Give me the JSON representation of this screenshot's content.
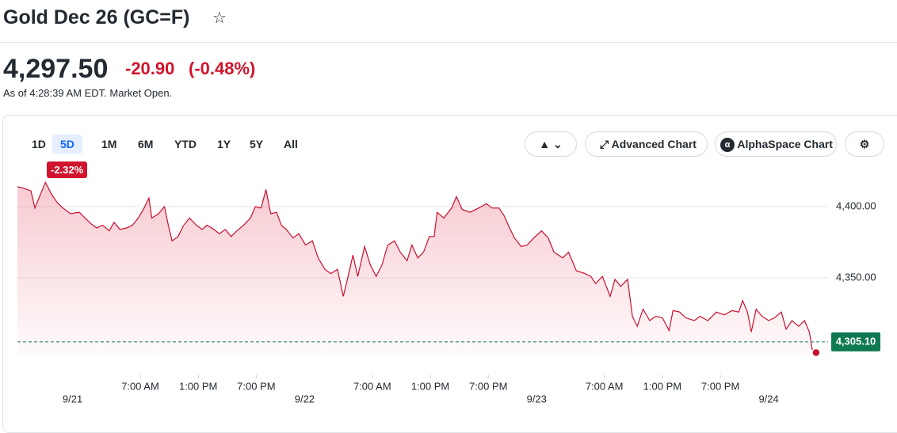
{
  "header": {
    "title": "Gold Dec 26 (GC=F)",
    "price": "4,297.50",
    "change": "-20.90",
    "change_pct": "(-0.48%)",
    "as_of": "As of 4:28:39 AM EDT. Market Open."
  },
  "toolbar": {
    "ranges": [
      "1D",
      "5D",
      "1M",
      "6M",
      "YTD",
      "1Y",
      "5Y",
      "All"
    ],
    "selected": "5D",
    "range_change": "-2.32%",
    "buttons": [
      "Advanced Chart",
      "AlphaSpace Chart"
    ]
  },
  "chart_data": {
    "type": "line",
    "color": "#c8102e",
    "x": [
      -5.7,
      -5.1,
      -4.3,
      -3.9,
      -3.3,
      -2.8,
      -2.2,
      -1.6,
      -1.0,
      -0.2,
      0.7,
      1.3,
      1.9,
      2.5,
      3.1,
      3.8,
      4.3,
      4.9,
      5.6,
      6.2,
      6.8,
      7.4,
      7.9,
      8.2,
      8.9,
      9.5,
      9.9,
      10.3,
      10.9,
      11.5,
      12.1,
      12.8,
      13.4,
      13.9,
      14.6,
      15.2,
      15.8,
      16.4,
      17.0,
      17.7,
      18.4,
      18.9,
      19.5,
      20.0,
      20.5,
      21.1,
      21.6,
      22.1,
      22.8,
      23.4,
      24.1,
      24.8,
      25.4,
      26.1,
      26.7,
      27.4,
      28.0,
      28.5,
      29.0,
      29.5,
      30.2,
      30.8,
      31.4,
      32.0,
      32.6,
      33.3,
      33.9,
      34.6,
      35.1,
      35.7,
      36.3,
      36.9,
      37.4,
      37.7,
      38.4,
      39.2,
      39.7,
      40.3,
      41.1,
      42.0,
      42.8,
      43.4,
      44.1,
      44.6,
      45.2,
      45.7,
      46.4,
      47.0,
      47.7,
      48.5,
      49.2,
      49.8,
      50.7,
      51.3,
      52.1,
      53.0,
      53.6,
      54.1,
      54.8,
      55.6,
      56.1,
      56.7,
      57.4,
      57.9,
      58.4,
      59.0,
      59.7,
      60.3,
      61.0,
      61.7,
      62.1,
      62.8,
      63.4,
      64.3,
      64.9,
      65.7,
      66.6,
      67.4,
      68.2,
      68.9,
      69.3,
      69.8,
      70.2,
      70.7,
      71.3,
      72.0,
      72.6,
      73.3,
      73.8,
      74.4,
      75.1,
      75.7,
      76.2,
      76.6,
      76.9
    ],
    "values": [
      4414,
      4413,
      4411,
      4399,
      4409,
      4417,
      4409,
      4403,
      4399,
      4395,
      4396,
      4392,
      4388,
      4385,
      4387,
      4383,
      4389,
      4384,
      4385,
      4387,
      4392,
      4399,
      4406,
      4392,
      4395,
      4400,
      4387,
      4376,
      4379,
      4387,
      4392,
      4387,
      4384,
      4387,
      4384,
      4381,
      4384,
      4379,
      4383,
      4387,
      4392,
      4400,
      4399,
      4412,
      4395,
      4396,
      4387,
      4384,
      4378,
      4381,
      4373,
      4376,
      4364,
      4356,
      4353,
      4356,
      4337,
      4351,
      4366,
      4351,
      4372,
      4359,
      4351,
      4359,
      4373,
      4376,
      4368,
      4362,
      4373,
      4364,
      4368,
      4379,
      4379,
      4396,
      4392,
      4399,
      4407,
      4398,
      4396,
      4399,
      4402,
      4399,
      4399,
      4394,
      4385,
      4378,
      4372,
      4373,
      4378,
      4383,
      4378,
      4368,
      4364,
      4368,
      4355,
      4353,
      4351,
      4346,
      4351,
      4337,
      4349,
      4344,
      4349,
      4323,
      4316,
      4328,
      4320,
      4323,
      4322,
      4313,
      4327,
      4326,
      4322,
      4320,
      4323,
      4320,
      4326,
      4324,
      4327,
      4326,
      4334,
      4326,
      4312,
      4328,
      4323,
      4320,
      4322,
      4326,
      4314,
      4320,
      4316,
      4320,
      4312,
      4296,
      4297.5
    ],
    "xlim": [
      -5.7,
      77.4
    ],
    "ylim": [
      4295,
      4417.2
    ],
    "xticks": [
      {
        "value": 7,
        "label": "7:00 AM"
      },
      {
        "value": 13,
        "label": "1:00 PM"
      },
      {
        "value": 19,
        "label": "7:00 PM"
      },
      {
        "value": 31,
        "label": "7:00 AM"
      },
      {
        "value": 37,
        "label": "1:00 PM"
      },
      {
        "value": 43,
        "label": "7:00 PM"
      },
      {
        "value": 55,
        "label": "7:00 AM"
      },
      {
        "value": 61,
        "label": "1:00 PM"
      },
      {
        "value": 67,
        "label": "7:00 PM"
      }
    ],
    "date_ticks": [
      {
        "value": 0,
        "label": "9/21"
      },
      {
        "value": 24,
        "label": "9/22"
      },
      {
        "value": 48,
        "label": "9/23"
      },
      {
        "value": 72,
        "label": "9/24"
      }
    ],
    "yticks": [
      {
        "value": 4400,
        "label": "4,400.00"
      },
      {
        "value": 4350,
        "label": "4,350.00"
      }
    ],
    "reference_line": {
      "value": 4305.1,
      "label": "4,305.10",
      "color": "#0f7a52"
    }
  }
}
